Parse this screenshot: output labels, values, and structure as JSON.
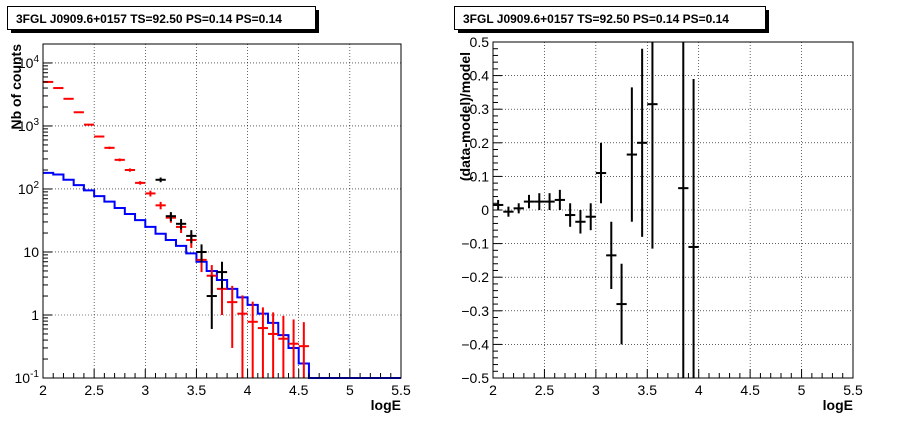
{
  "chart_data": [
    {
      "type": "line",
      "title": "3FGL J0909.6+0157 TS=92.50 PS=0.14 PS=0.14",
      "xlabel": "logE",
      "ylabel": "Nb of counts",
      "xlim": [
        2,
        5.5
      ],
      "ylim": [
        0.1,
        20000
      ],
      "log_y": true,
      "grid": true,
      "x_ticks": [
        "2",
        "2.5",
        "3",
        "3.5",
        "4",
        "4.5",
        "5",
        "5.5"
      ],
      "y_ticks": [
        "10^-1",
        "1",
        "10",
        "10^2",
        "10^3",
        "10^4"
      ],
      "series": [
        {
          "color": "#0000ff",
          "style": "step",
          "edges": [
            2.0,
            2.1,
            2.2,
            2.3,
            2.4,
            2.5,
            2.6,
            2.7,
            2.8,
            2.9,
            3.0,
            3.1,
            3.2,
            3.3,
            3.4,
            3.5,
            3.6,
            3.7,
            3.8,
            3.9,
            4.0,
            4.1,
            4.2,
            4.3,
            4.4,
            4.5,
            4.6,
            4.7,
            4.8,
            4.9,
            5.0,
            5.1,
            5.2,
            5.3,
            5.4,
            5.5
          ],
          "values": [
            180,
            170,
            140,
            115,
            95,
            77,
            63,
            50,
            40,
            32,
            25,
            19.5,
            15.5,
            12.5,
            9.5,
            7,
            5,
            3.6,
            2.6,
            1.9,
            1.45,
            1.05,
            0.75,
            0.48,
            0.3,
            0.17,
            0.1,
            0.1,
            0.1,
            0.1,
            0.1,
            0.1,
            0.1,
            0.1,
            0.1
          ]
        },
        {
          "color": "#ff0000",
          "style": "errorbar",
          "x": [
            2.05,
            2.15,
            2.25,
            2.35,
            2.45,
            2.55,
            2.65,
            2.75,
            2.85,
            2.95,
            3.05,
            3.15,
            3.25,
            3.35,
            3.45,
            3.55,
            3.65,
            3.75,
            3.85,
            3.95,
            4.05,
            4.15,
            4.25,
            4.35,
            4.45,
            4.55
          ],
          "y": [
            5000,
            4000,
            2700,
            1650,
            1050,
            680,
            450,
            290,
            200,
            125,
            85,
            55,
            35,
            25,
            15.5,
            7.5,
            4.2,
            2.6,
            1.6,
            1.05,
            0.78,
            0.62,
            0.5,
            0.42,
            0.35,
            0.32
          ],
          "err_low": [
            100,
            80,
            60,
            40,
            30,
            25,
            20,
            15,
            12,
            8,
            9,
            7.4,
            5.9,
            5,
            3.9,
            2.7,
            2.0,
            1.6,
            1.3,
            1.05,
            0.78,
            0.62,
            0.5,
            0.42,
            0.35,
            0.32
          ],
          "err_high": [
            100,
            80,
            60,
            40,
            30,
            25,
            20,
            15,
            12,
            8,
            9,
            7.4,
            5.9,
            5,
            3.9,
            2.7,
            2.0,
            1.6,
            1.3,
            1.0,
            0.85,
            0.7,
            0.6,
            0.55,
            0.5,
            0.45
          ]
        },
        {
          "color": "#000000",
          "style": "errorbar",
          "x": [
            3.15,
            3.25,
            3.35,
            3.45,
            3.55,
            3.65,
            3.75
          ],
          "y": [
            140,
            37,
            28,
            18,
            10,
            2,
            4.8
          ],
          "err_low": [
            12,
            6,
            5.3,
            4.2,
            3.2,
            1.4,
            2.2
          ],
          "err_high": [
            12,
            6,
            5.3,
            4.2,
            3.2,
            2.2,
            2.2
          ]
        }
      ]
    },
    {
      "type": "scatter",
      "title": "3FGL J0909.6+0157 TS=92.50 PS=0.14 PS=0.14",
      "xlabel": "logE",
      "ylabel": "(data-model)/model",
      "xlim": [
        2,
        5.5
      ],
      "ylim": [
        -0.5,
        0.5
      ],
      "grid": true,
      "x_ticks": [
        "2",
        "2.5",
        "3",
        "3.5",
        "4",
        "4.5",
        "5",
        "5.5"
      ],
      "y_ticks": [
        "−0.5",
        "−0.4",
        "−0.3",
        "−0.2",
        "−0.1",
        "0",
        "0.1",
        "0.2",
        "0.3",
        "0.4",
        "0.5"
      ],
      "series": [
        {
          "color": "#000000",
          "style": "errorbar",
          "x": [
            2.05,
            2.15,
            2.25,
            2.35,
            2.45,
            2.55,
            2.65,
            2.75,
            2.85,
            2.95,
            3.05,
            3.15,
            3.25,
            3.35,
            3.45,
            3.55,
            3.85,
            3.95
          ],
          "y": [
            0.015,
            -0.005,
            0.005,
            0.025,
            0.025,
            0.025,
            0.03,
            -0.015,
            -0.035,
            -0.02,
            0.11,
            -0.135,
            -0.28,
            0.165,
            0.2,
            0.315,
            0.065,
            -0.11
          ],
          "err": [
            0.015,
            0.015,
            0.015,
            0.02,
            0.025,
            0.025,
            0.03,
            0.035,
            0.035,
            0.04,
            0.09,
            0.1,
            0.12,
            0.2,
            0.28,
            0.43,
            0.6,
            0.5
          ]
        }
      ]
    }
  ]
}
